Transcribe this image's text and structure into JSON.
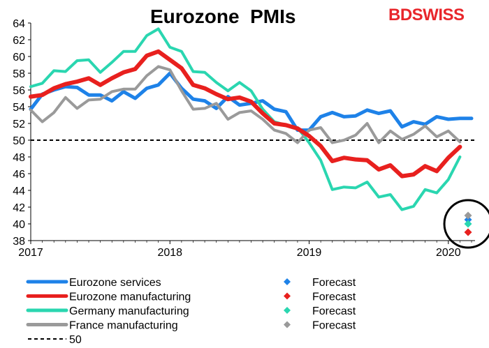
{
  "page": {
    "title": "Eurozone  PMIs",
    "logo_part1": "BD",
    "logo_part2": "SWISS"
  },
  "colors": {
    "services": "#1e82e8",
    "manufacturing": "#e8201e",
    "germany": "#2ad6b0",
    "france": "#9a9a9a",
    "line50": "#000000",
    "circle": "#000000"
  },
  "chart_data": {
    "type": "line",
    "title": "Eurozone  PMIs",
    "xlabel": "",
    "ylabel": "",
    "ylim": [
      38,
      64
    ],
    "yticks": [
      "38",
      "40",
      "42",
      "44",
      "46",
      "48",
      "50",
      "52",
      "54",
      "56",
      "58",
      "60",
      "62",
      "64"
    ],
    "xlim": [
      "2017-01",
      "2020-03"
    ],
    "xticks": [
      "2017",
      "2018",
      "2019",
      "2020"
    ],
    "grid": false,
    "legend_placement": "bottom",
    "reference_line": {
      "name": "50",
      "value": 50
    },
    "series": [
      {
        "name": "Eurozone services",
        "color_key": "services",
        "values": [
          53.7,
          55.5,
          56.0,
          56.4,
          56.3,
          55.4,
          55.4,
          54.7,
          55.8,
          55.0,
          56.2,
          56.6,
          58.0,
          56.2,
          54.9,
          54.7,
          53.8,
          55.2,
          54.2,
          54.4,
          54.7,
          53.7,
          53.4,
          51.2,
          51.2,
          52.8,
          53.3,
          52.8,
          52.9,
          53.6,
          53.2,
          53.5,
          51.6,
          52.2,
          51.9,
          52.8,
          52.5,
          52.6,
          52.6
        ],
        "forecast": 40.5
      },
      {
        "name": "Eurozone manufacturing",
        "color_key": "manufacturing",
        "values": [
          55.2,
          55.4,
          56.2,
          56.7,
          57.0,
          57.4,
          56.6,
          57.4,
          58.1,
          58.5,
          60.1,
          60.6,
          59.6,
          58.6,
          56.6,
          56.2,
          55.5,
          54.9,
          55.1,
          54.6,
          53.2,
          52.0,
          51.8,
          51.4,
          50.5,
          49.3,
          47.5,
          47.9,
          47.7,
          47.6,
          46.5,
          47.0,
          45.7,
          45.9,
          46.9,
          46.3,
          47.9,
          49.2
        ],
        "forecast": 39.0
      },
      {
        "name": "Germany manufacturing",
        "color_key": "germany",
        "values": [
          56.4,
          56.8,
          58.3,
          58.2,
          59.5,
          59.6,
          58.1,
          59.3,
          60.6,
          60.6,
          62.5,
          63.3,
          61.1,
          60.6,
          58.2,
          58.1,
          56.9,
          55.9,
          56.9,
          55.9,
          53.7,
          52.2,
          51.8,
          51.5,
          49.7,
          47.6,
          44.1,
          44.4,
          44.3,
          45.0,
          43.2,
          43.5,
          41.7,
          42.1,
          44.1,
          43.7,
          45.3,
          48.0
        ],
        "forecast": 40.0
      },
      {
        "name": "France manufacturing",
        "color_key": "france",
        "values": [
          53.6,
          52.2,
          53.3,
          55.1,
          53.8,
          54.8,
          54.9,
          55.8,
          56.1,
          56.1,
          57.7,
          58.8,
          58.4,
          55.9,
          53.7,
          53.8,
          54.4,
          52.5,
          53.3,
          53.5,
          52.5,
          51.2,
          50.8,
          49.7,
          51.2,
          51.5,
          49.7,
          50.0,
          50.6,
          52.0,
          49.7,
          51.1,
          50.1,
          50.7,
          51.7,
          50.4,
          51.1,
          49.8
        ],
        "forecast": 41.0
      }
    ]
  },
  "legend": [
    {
      "label": "Eurozone services",
      "type": "line",
      "color_key": "services"
    },
    {
      "label": "Eurozone manufacturing",
      "type": "line",
      "color_key": "manufacturing"
    },
    {
      "label": "Germany manufacturing",
      "type": "line",
      "color_key": "germany"
    },
    {
      "label": "France manufacturing",
      "type": "line",
      "color_key": "france"
    },
    {
      "label": "50",
      "type": "dashed",
      "color_key": "line50"
    }
  ],
  "legend_forecast": [
    {
      "label": "Forecast",
      "color_key": "services"
    },
    {
      "label": "Forecast",
      "color_key": "manufacturing"
    },
    {
      "label": "Forecast",
      "color_key": "germany"
    },
    {
      "label": "Forecast",
      "color_key": "france"
    }
  ]
}
